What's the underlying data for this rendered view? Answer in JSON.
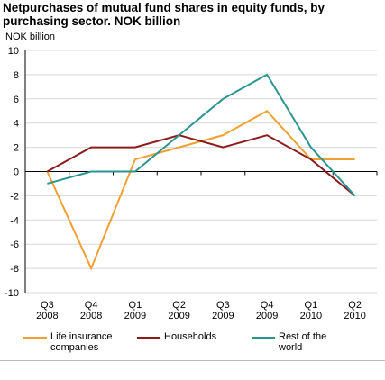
{
  "chart_data": {
    "type": "line",
    "title": "Netpurchases of mutual fund shares in equity funds, by purchasing sector. NOK billion",
    "y_label": "NOK billion",
    "categories": [
      "Q3 2008",
      "Q4 2008",
      "Q1 2009",
      "Q2 2009",
      "Q3 2009",
      "Q4 2009",
      "Q1 2010",
      "Q2 2010"
    ],
    "series": [
      {
        "name": "Life insurance companies",
        "color": "#f0a030",
        "values": [
          0,
          -8,
          1,
          2,
          3,
          5,
          1,
          1
        ]
      },
      {
        "name": "Households",
        "color": "#8c1c1c",
        "values": [
          0,
          2,
          2,
          3,
          2,
          3,
          1,
          -2
        ]
      },
      {
        "name": "Rest of the world",
        "color": "#2a9590",
        "values": [
          -1,
          0,
          0,
          3,
          6,
          8,
          2,
          -2
        ]
      }
    ],
    "ylim": [
      -10,
      10
    ],
    "yticks": [
      -10,
      -8,
      -6,
      -4,
      -2,
      0,
      2,
      4,
      6,
      8,
      10
    ],
    "grid": true
  }
}
